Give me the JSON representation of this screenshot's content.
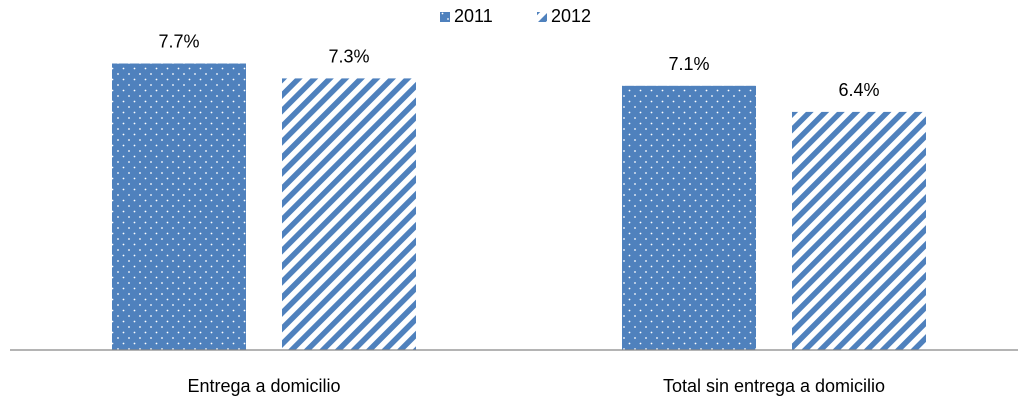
{
  "chart_data": {
    "type": "bar",
    "categories": [
      "Entrega a domicilio",
      "Total sin entrega a domicilio"
    ],
    "series": [
      {
        "name": "2011",
        "values": [
          7.7,
          7.1
        ],
        "labels": [
          "7.7%",
          "7.1%"
        ],
        "pattern": "dotted"
      },
      {
        "name": "2012",
        "values": [
          7.3,
          6.4
        ],
        "labels": [
          "7.3%",
          "6.4%"
        ],
        "pattern": "striped"
      }
    ],
    "title": "",
    "xlabel": "",
    "ylabel": "",
    "ylim": [
      0,
      8.6
    ],
    "grid": false,
    "legend_position": "top-center",
    "colors": {
      "bar": "#4f81bd",
      "axis": "#868686"
    }
  }
}
